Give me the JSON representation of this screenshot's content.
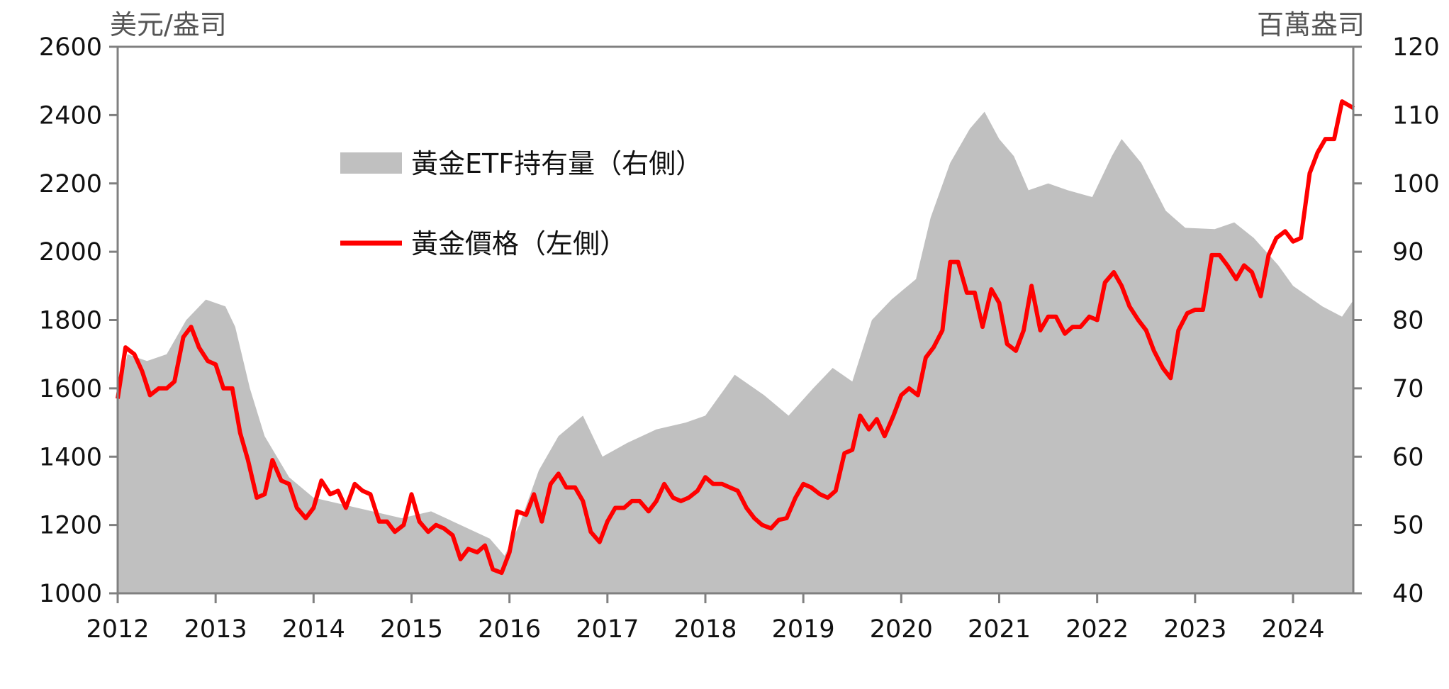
{
  "chart_data": {
    "type": "line",
    "title": "",
    "left_axis": {
      "label": "美元/盎司",
      "ylim": [
        1000,
        2600
      ],
      "ticks": [
        "1000",
        "1200",
        "1400",
        "1600",
        "1800",
        "2000",
        "2200",
        "2400",
        "2600"
      ]
    },
    "right_axis": {
      "label": "百萬盎司",
      "ylim": [
        40,
        120
      ],
      "ticks": [
        "40",
        "50",
        "60",
        "70",
        "80",
        "90",
        "100",
        "110",
        "120"
      ]
    },
    "x_axis": {
      "xlim": [
        2012,
        2024.62
      ],
      "ticks": [
        "2012",
        "2013",
        "2014",
        "2015",
        "2016",
        "2017",
        "2018",
        "2019",
        "2020",
        "2021",
        "2022",
        "2023",
        "2024"
      ]
    },
    "legend": {
      "placement": "top-left",
      "items": [
        "黃金ETF持有量（右側）",
        "黃金價格（左側）"
      ]
    },
    "colors": {
      "etf": "#c0c0c0",
      "price": "#ff0000",
      "axis": "#808080"
    },
    "series": [
      {
        "name": "黃金ETF持有量（右側）",
        "axis": "right",
        "type": "area",
        "points": [
          [
            2012.0,
            68
          ],
          [
            2012.1,
            75
          ],
          [
            2012.3,
            74
          ],
          [
            2012.5,
            75
          ],
          [
            2012.7,
            80
          ],
          [
            2012.9,
            83
          ],
          [
            2013.1,
            82
          ],
          [
            2013.2,
            79
          ],
          [
            2013.35,
            70
          ],
          [
            2013.5,
            63
          ],
          [
            2013.75,
            57
          ],
          [
            2014.0,
            54
          ],
          [
            2014.3,
            53
          ],
          [
            2014.6,
            52
          ],
          [
            2014.9,
            51
          ],
          [
            2015.2,
            52
          ],
          [
            2015.5,
            50
          ],
          [
            2015.8,
            48
          ],
          [
            2015.95,
            45.5
          ],
          [
            2016.1,
            50
          ],
          [
            2016.3,
            58
          ],
          [
            2016.5,
            63
          ],
          [
            2016.75,
            66
          ],
          [
            2016.95,
            60
          ],
          [
            2017.2,
            62
          ],
          [
            2017.5,
            64
          ],
          [
            2017.8,
            65
          ],
          [
            2018.0,
            66
          ],
          [
            2018.3,
            72
          ],
          [
            2018.6,
            69
          ],
          [
            2018.85,
            66
          ],
          [
            2019.1,
            70
          ],
          [
            2019.3,
            73
          ],
          [
            2019.5,
            71
          ],
          [
            2019.7,
            80
          ],
          [
            2019.9,
            83
          ],
          [
            2020.15,
            86
          ],
          [
            2020.3,
            95
          ],
          [
            2020.5,
            103
          ],
          [
            2020.7,
            108
          ],
          [
            2020.85,
            110.5
          ],
          [
            2021.0,
            106.5
          ],
          [
            2021.15,
            104
          ],
          [
            2021.3,
            99
          ],
          [
            2021.5,
            100
          ],
          [
            2021.7,
            99
          ],
          [
            2021.95,
            98
          ],
          [
            2022.15,
            104
          ],
          [
            2022.25,
            106.5
          ],
          [
            2022.45,
            103
          ],
          [
            2022.7,
            96
          ],
          [
            2022.9,
            93.5
          ],
          [
            2023.2,
            93.3
          ],
          [
            2023.4,
            94.3
          ],
          [
            2023.6,
            92
          ],
          [
            2023.85,
            88
          ],
          [
            2024.0,
            85
          ],
          [
            2024.3,
            82
          ],
          [
            2024.5,
            80.5
          ],
          [
            2024.62,
            83
          ]
        ]
      },
      {
        "name": "黃金價格（左側）",
        "axis": "left",
        "type": "line",
        "points": [
          [
            2012.0,
            1570
          ],
          [
            2012.08,
            1720
          ],
          [
            2012.17,
            1700
          ],
          [
            2012.25,
            1650
          ],
          [
            2012.33,
            1580
          ],
          [
            2012.42,
            1600
          ],
          [
            2012.5,
            1600
          ],
          [
            2012.58,
            1620
          ],
          [
            2012.67,
            1750
          ],
          [
            2012.75,
            1780
          ],
          [
            2012.83,
            1720
          ],
          [
            2012.92,
            1680
          ],
          [
            2013.0,
            1670
          ],
          [
            2013.08,
            1600
          ],
          [
            2013.17,
            1600
          ],
          [
            2013.25,
            1470
          ],
          [
            2013.33,
            1390
          ],
          [
            2013.42,
            1280
          ],
          [
            2013.5,
            1290
          ],
          [
            2013.58,
            1390
          ],
          [
            2013.67,
            1330
          ],
          [
            2013.75,
            1320
          ],
          [
            2013.83,
            1250
          ],
          [
            2013.92,
            1220
          ],
          [
            2014.0,
            1250
          ],
          [
            2014.08,
            1330
          ],
          [
            2014.17,
            1290
          ],
          [
            2014.25,
            1300
          ],
          [
            2014.33,
            1250
          ],
          [
            2014.42,
            1320
          ],
          [
            2014.5,
            1300
          ],
          [
            2014.58,
            1290
          ],
          [
            2014.67,
            1210
          ],
          [
            2014.75,
            1210
          ],
          [
            2014.83,
            1180
          ],
          [
            2014.92,
            1200
          ],
          [
            2015.0,
            1290
          ],
          [
            2015.08,
            1210
          ],
          [
            2015.17,
            1180
          ],
          [
            2015.25,
            1200
          ],
          [
            2015.33,
            1190
          ],
          [
            2015.42,
            1170
          ],
          [
            2015.5,
            1100
          ],
          [
            2015.58,
            1130
          ],
          [
            2015.67,
            1120
          ],
          [
            2015.75,
            1140
          ],
          [
            2015.83,
            1070
          ],
          [
            2015.92,
            1060
          ],
          [
            2016.0,
            1120
          ],
          [
            2016.08,
            1240
          ],
          [
            2016.17,
            1230
          ],
          [
            2016.25,
            1290
          ],
          [
            2016.33,
            1210
          ],
          [
            2016.42,
            1320
          ],
          [
            2016.5,
            1350
          ],
          [
            2016.58,
            1310
          ],
          [
            2016.67,
            1310
          ],
          [
            2016.75,
            1270
          ],
          [
            2016.83,
            1180
          ],
          [
            2016.92,
            1150
          ],
          [
            2017.0,
            1210
          ],
          [
            2017.08,
            1250
          ],
          [
            2017.17,
            1250
          ],
          [
            2017.25,
            1270
          ],
          [
            2017.33,
            1270
          ],
          [
            2017.42,
            1240
          ],
          [
            2017.5,
            1270
          ],
          [
            2017.58,
            1320
          ],
          [
            2017.67,
            1280
          ],
          [
            2017.75,
            1270
          ],
          [
            2017.83,
            1280
          ],
          [
            2017.92,
            1300
          ],
          [
            2018.0,
            1340
          ],
          [
            2018.08,
            1320
          ],
          [
            2018.17,
            1320
          ],
          [
            2018.25,
            1310
          ],
          [
            2018.33,
            1300
          ],
          [
            2018.42,
            1250
          ],
          [
            2018.5,
            1220
          ],
          [
            2018.58,
            1200
          ],
          [
            2018.67,
            1190
          ],
          [
            2018.75,
            1215
          ],
          [
            2018.83,
            1220
          ],
          [
            2018.92,
            1280
          ],
          [
            2019.0,
            1320
          ],
          [
            2019.08,
            1310
          ],
          [
            2019.17,
            1290
          ],
          [
            2019.25,
            1280
          ],
          [
            2019.33,
            1300
          ],
          [
            2019.42,
            1410
          ],
          [
            2019.5,
            1420
          ],
          [
            2019.58,
            1520
          ],
          [
            2019.67,
            1480
          ],
          [
            2019.75,
            1510
          ],
          [
            2019.83,
            1460
          ],
          [
            2019.92,
            1520
          ],
          [
            2020.0,
            1580
          ],
          [
            2020.08,
            1600
          ],
          [
            2020.17,
            1580
          ],
          [
            2020.25,
            1690
          ],
          [
            2020.33,
            1720
          ],
          [
            2020.42,
            1770
          ],
          [
            2020.5,
            1970
          ],
          [
            2020.58,
            1970
          ],
          [
            2020.67,
            1880
          ],
          [
            2020.75,
            1880
          ],
          [
            2020.83,
            1780
          ],
          [
            2020.92,
            1890
          ],
          [
            2021.0,
            1850
          ],
          [
            2021.08,
            1730
          ],
          [
            2021.17,
            1710
          ],
          [
            2021.25,
            1770
          ],
          [
            2021.33,
            1900
          ],
          [
            2021.42,
            1770
          ],
          [
            2021.5,
            1810
          ],
          [
            2021.58,
            1810
          ],
          [
            2021.67,
            1760
          ],
          [
            2021.75,
            1780
          ],
          [
            2021.83,
            1780
          ],
          [
            2021.92,
            1810
          ],
          [
            2022.0,
            1800
          ],
          [
            2022.08,
            1910
          ],
          [
            2022.17,
            1940
          ],
          [
            2022.25,
            1900
          ],
          [
            2022.33,
            1840
          ],
          [
            2022.42,
            1800
          ],
          [
            2022.5,
            1770
          ],
          [
            2022.58,
            1710
          ],
          [
            2022.67,
            1660
          ],
          [
            2022.75,
            1630
          ],
          [
            2022.83,
            1770
          ],
          [
            2022.92,
            1820
          ],
          [
            2023.0,
            1830
          ],
          [
            2023.08,
            1830
          ],
          [
            2023.17,
            1990
          ],
          [
            2023.25,
            1990
          ],
          [
            2023.33,
            1960
          ],
          [
            2023.42,
            1920
          ],
          [
            2023.5,
            1960
          ],
          [
            2023.58,
            1940
          ],
          [
            2023.67,
            1870
          ],
          [
            2023.75,
            1990
          ],
          [
            2023.83,
            2040
          ],
          [
            2023.92,
            2060
          ],
          [
            2024.0,
            2030
          ],
          [
            2024.08,
            2040
          ],
          [
            2024.17,
            2230
          ],
          [
            2024.25,
            2290
          ],
          [
            2024.33,
            2330
          ],
          [
            2024.42,
            2330
          ],
          [
            2024.5,
            2440
          ],
          [
            2024.62,
            2420
          ]
        ]
      }
    ]
  }
}
